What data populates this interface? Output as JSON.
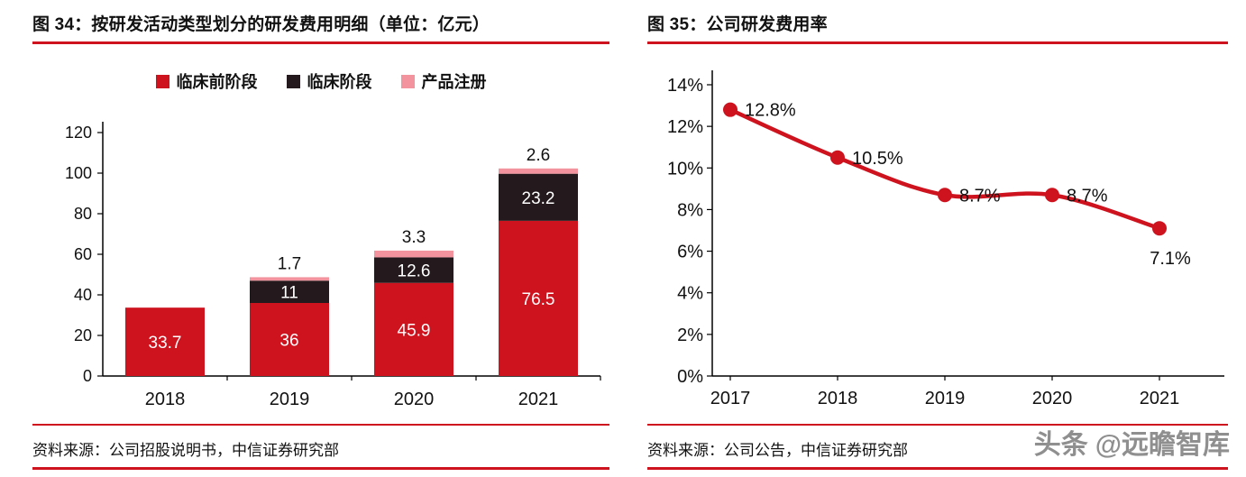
{
  "colors": {
    "accent": "#CE121E",
    "preclinical": "#CE121E",
    "clinical": "#241A1D",
    "registration": "#F2939D",
    "axis": "#000000",
    "bar_label_light": "#ffffff",
    "label_dark": "#111111",
    "watermark_gray": "#8f8f8f"
  },
  "chart_data": [
    {
      "id": "fig34",
      "type": "bar",
      "stacked": true,
      "title": "图 34：按研发活动类型划分的研发费用明细（单位：亿元）",
      "source": "资料来源：公司招股说明书，中信证券研究部",
      "categories": [
        "2018",
        "2019",
        "2020",
        "2021"
      ],
      "series": [
        {
          "name": "临床前阶段",
          "color": "#CE121E",
          "values": [
            33.7,
            36,
            45.9,
            76.5
          ],
          "labels": [
            "33.7",
            "36",
            "45.9",
            "76.5"
          ],
          "label_position": "inside"
        },
        {
          "name": "临床阶段",
          "color": "#241A1D",
          "values": [
            0,
            11,
            12.6,
            23.2
          ],
          "labels": [
            "",
            "11",
            "12.6",
            "23.2"
          ],
          "label_position": "inside"
        },
        {
          "name": "产品注册",
          "color": "#F2939D",
          "values": [
            0,
            1.7,
            3.3,
            2.6
          ],
          "labels": [
            "",
            "1.7",
            "3.3",
            "2.6"
          ],
          "label_position": "above"
        }
      ],
      "ylim": [
        0,
        120
      ],
      "ytick_step": 20,
      "legend_position": "top",
      "grid": false
    },
    {
      "id": "fig35",
      "type": "line",
      "title": "图 35：公司研发费用率",
      "source": "资料来源：公司公告，中信证券研究部",
      "x": [
        "2017",
        "2018",
        "2019",
        "2020",
        "2021"
      ],
      "values": [
        12.8,
        10.5,
        8.7,
        8.7,
        7.1
      ],
      "labels": [
        "12.8%",
        "10.5%",
        "8.7%",
        "8.7%",
        "7.1%"
      ],
      "ylim": [
        0,
        14
      ],
      "ytick_step": 2,
      "ytick_suffix": "%",
      "line_color": "#CE121E",
      "marker": "circle",
      "grid": false
    }
  ],
  "watermark": {
    "brand": "头条",
    "handle": "@远瞻智库"
  }
}
